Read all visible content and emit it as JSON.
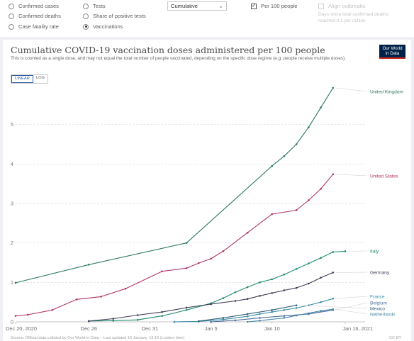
{
  "controls": {
    "radios": [
      {
        "label": "Confirmed cases",
        "selected": false
      },
      {
        "label": "Confirmed deaths",
        "selected": false
      },
      {
        "label": "Case fatality rate",
        "selected": false
      },
      {
        "label": "Tests",
        "selected": false
      },
      {
        "label": "Share of positive tests",
        "selected": false
      },
      {
        "label": "Vaccinations",
        "selected": true
      }
    ],
    "interval_select": "Cumulative",
    "per_100_label": "Per 100 people",
    "per_100_checked": true,
    "align_label": "Align outbreaks",
    "align_checked": false,
    "align_note_1": "Days since total confirmed deaths",
    "align_note_2": "reached 0.1 per million"
  },
  "logo": {
    "line1": "Our World",
    "line2": "in Data"
  },
  "scale_toggle": {
    "linear": "LINEAR",
    "log": "LOG",
    "active": "LINEAR"
  },
  "footer": {
    "source": "Source: Official data collated by Our World in Data – Last updated 16 January, 19:10 (London time)",
    "license": "CC BY"
  },
  "chart_data": {
    "type": "line",
    "title": "Cumulative COVID-19 vaccination doses administered per 100 people",
    "subtitle": "This is counted as a single dose, and may not equal the total number of people vaccinated, depending on the specific dose regime (e.g. people receive multiple doses).",
    "xlabel": "",
    "ylabel": "",
    "x_ticks": [
      {
        "label": "Dec 20, 2020",
        "day": 0
      },
      {
        "label": "Dec 26",
        "day": 6
      },
      {
        "label": "Dec 31",
        "day": 11
      },
      {
        "label": "Jan 5",
        "day": 16
      },
      {
        "label": "Jan 10",
        "day": 21
      },
      {
        "label": "Jan 16, 2021",
        "day": 27
      }
    ],
    "xlim": [
      0,
      27
    ],
    "ylim": [
      0,
      6
    ],
    "y_ticks": [
      0,
      1,
      2,
      3,
      4,
      5
    ],
    "grid": true,
    "legend": "right, labels at line ends",
    "series": [
      {
        "name": "United Kingdom",
        "color": "#2c7a5a",
        "points": [
          [
            0,
            0.99
          ],
          [
            6,
            1.45
          ],
          [
            14,
            2.0
          ],
          [
            21,
            3.95
          ],
          [
            22,
            4.2
          ],
          [
            23,
            4.5
          ],
          [
            24,
            4.93
          ],
          [
            25,
            5.43
          ],
          [
            26,
            5.93
          ]
        ]
      },
      {
        "name": "United States",
        "color": "#b2346a",
        "points": [
          [
            0,
            0.15
          ],
          [
            1,
            0.18
          ],
          [
            3,
            0.3
          ],
          [
            5,
            0.57
          ],
          [
            7,
            0.64
          ],
          [
            9,
            0.84
          ],
          [
            12,
            1.28
          ],
          [
            14,
            1.36
          ],
          [
            15,
            1.49
          ],
          [
            16,
            1.6
          ],
          [
            17,
            1.79
          ],
          [
            19,
            2.26
          ],
          [
            21,
            2.73
          ],
          [
            23,
            2.83
          ],
          [
            24,
            3.08
          ],
          [
            25,
            3.37
          ],
          [
            26,
            3.74
          ]
        ]
      },
      {
        "name": "Italy",
        "color": "#1f8a70",
        "points": [
          [
            6,
            0.02
          ],
          [
            8,
            0.03
          ],
          [
            10,
            0.05
          ],
          [
            12,
            0.15
          ],
          [
            14,
            0.3
          ],
          [
            16,
            0.47
          ],
          [
            17,
            0.6
          ],
          [
            18,
            0.75
          ],
          [
            19,
            0.88
          ],
          [
            20,
            1.0
          ],
          [
            21,
            1.08
          ],
          [
            22,
            1.2
          ],
          [
            23,
            1.34
          ],
          [
            24,
            1.48
          ],
          [
            25,
            1.62
          ],
          [
            26,
            1.77
          ],
          [
            27,
            1.79
          ]
        ]
      },
      {
        "name": "Germany",
        "color": "#3d3d55",
        "points": [
          [
            6,
            0.02
          ],
          [
            8,
            0.08
          ],
          [
            10,
            0.17
          ],
          [
            12,
            0.25
          ],
          [
            14,
            0.36
          ],
          [
            16,
            0.45
          ],
          [
            18,
            0.53
          ],
          [
            19,
            0.58
          ],
          [
            20,
            0.66
          ],
          [
            21,
            0.73
          ],
          [
            22,
            0.8
          ],
          [
            23,
            0.86
          ],
          [
            24,
            0.97
          ],
          [
            25,
            1.12
          ],
          [
            26,
            1.25
          ]
        ]
      },
      {
        "name": "France",
        "color": "#3a8ea5",
        "points": [
          [
            13,
            0.0
          ],
          [
            15,
            0.01
          ],
          [
            17,
            0.06
          ],
          [
            19,
            0.14
          ],
          [
            20,
            0.2
          ],
          [
            21,
            0.25
          ],
          [
            22,
            0.3
          ],
          [
            23,
            0.35
          ],
          [
            24,
            0.42
          ],
          [
            25,
            0.5
          ],
          [
            26,
            0.59
          ]
        ]
      },
      {
        "name": "Belgium",
        "color": "#4c6a9c",
        "points": [
          [
            16,
            0.0
          ],
          [
            18,
            0.04
          ],
          [
            20,
            0.1
          ],
          [
            22,
            0.15
          ],
          [
            24,
            0.2
          ],
          [
            26,
            0.3
          ]
        ]
      },
      {
        "name": "Mexico",
        "color": "#2f5f7a",
        "points": [
          [
            15,
            0.02
          ],
          [
            17,
            0.1
          ],
          [
            19,
            0.2
          ],
          [
            21,
            0.3
          ],
          [
            23,
            0.42
          ]
        ]
      },
      {
        "name": "Netherlands",
        "color": "#4a8aa8",
        "points": [
          [
            19,
            0.0
          ],
          [
            20,
            0.03
          ],
          [
            22,
            0.1
          ],
          [
            23,
            0.16
          ],
          [
            24,
            0.22
          ],
          [
            25,
            0.28
          ],
          [
            26,
            0.32
          ]
        ]
      }
    ]
  }
}
